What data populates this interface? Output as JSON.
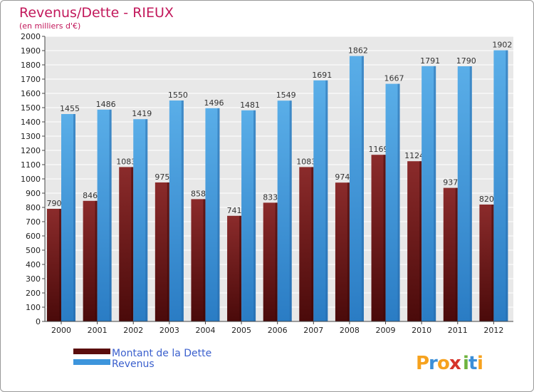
{
  "chart_data": {
    "type": "bar",
    "title": "Revenus/Dette - RIEUX",
    "subtitle": "(en milliers d'€)",
    "xlabel": "",
    "ylabel": "",
    "ylim": [
      0,
      2000
    ],
    "yticks": [
      0,
      100,
      200,
      300,
      400,
      500,
      600,
      700,
      800,
      900,
      1000,
      1100,
      1200,
      1300,
      1400,
      1500,
      1600,
      1700,
      1800,
      1900,
      2000
    ],
    "grid": true,
    "legend_position": "bottom-left",
    "categories": [
      "2000",
      "2001",
      "2002",
      "2003",
      "2004",
      "2005",
      "2006",
      "2007",
      "2008",
      "2009",
      "2010",
      "2011",
      "2012"
    ],
    "series": [
      {
        "name": "Montant de la Dette",
        "color": "#7a1c1c",
        "values": [
          790,
          846,
          1083,
          975,
          858,
          741,
          833,
          1083,
          974,
          1169,
          1124,
          937,
          820
        ],
        "labels": [
          "790",
          "846",
          "1083",
          "975",
          "858",
          "741",
          "833",
          "1083",
          "974",
          "1169",
          "1124",
          "937",
          "820"
        ]
      },
      {
        "name": "Revenus",
        "color": "#3d95dc",
        "values": [
          1455,
          1486,
          1419,
          1550,
          1496,
          1481,
          1549,
          1691,
          1862,
          1667,
          1791,
          1790,
          1902
        ],
        "labels": [
          "1455",
          "1486",
          "1419",
          "1550",
          "1496",
          "1481",
          "1549",
          "1691",
          "1862",
          "1667",
          "1791",
          "1790",
          "1902"
        ]
      }
    ]
  },
  "logo": {
    "letters": [
      "P",
      "r",
      "o",
      "x",
      "i",
      "t",
      "i"
    ],
    "colors": [
      "#f6a21e",
      "#3b8fd8",
      "#f6a21e",
      "#d6332a",
      "#6fb33f",
      "#3b8fd8",
      "#f6a21e"
    ]
  }
}
